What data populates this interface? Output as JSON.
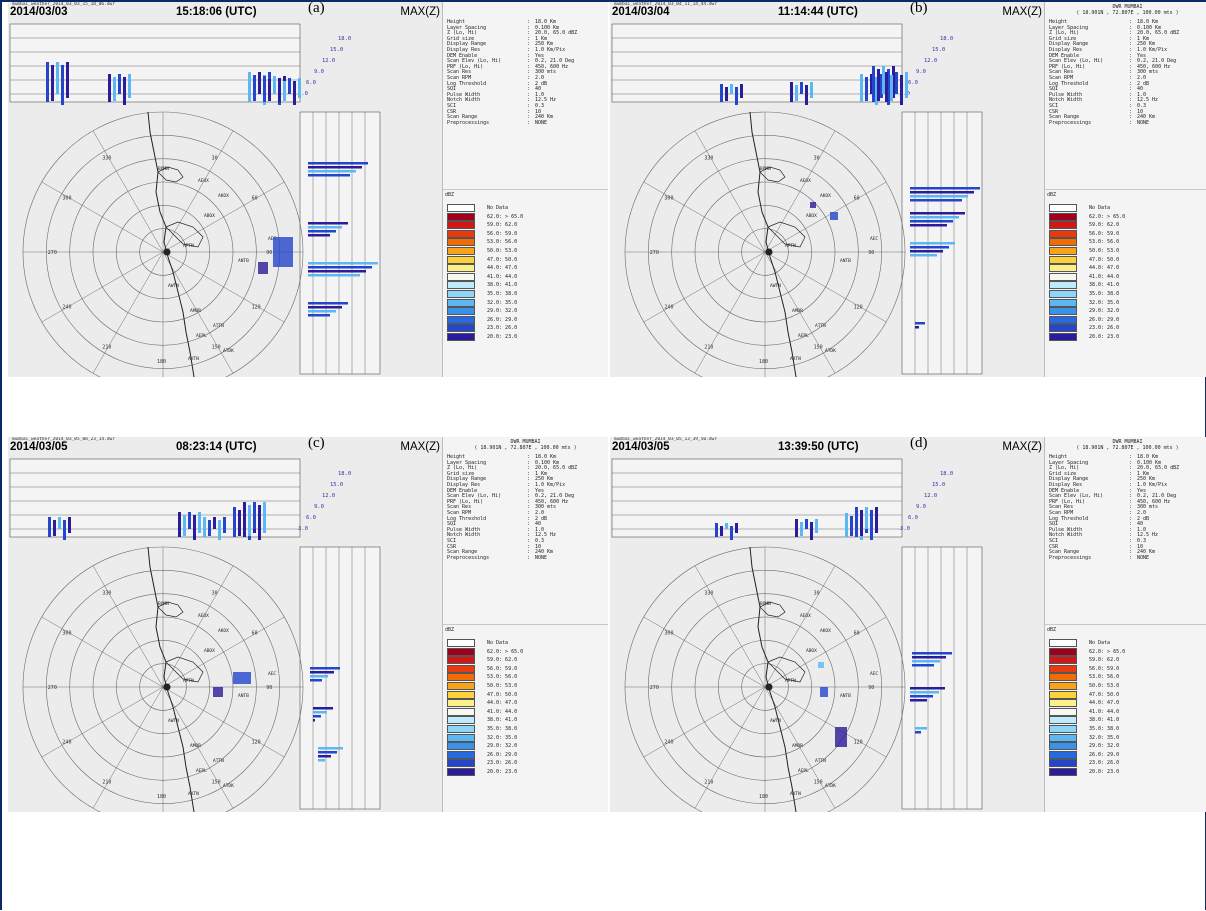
{
  "panels": [
    {
      "label": "(a)",
      "filename": "mumbai_weather_2014_03_03_15_18_06.dwr",
      "date": "2014/03/03",
      "time": "15:18:06 (UTC)",
      "product": "MAX(Z)",
      "show_header": false
    },
    {
      "label": "(b)",
      "filename": "mumbai_weather_2014_03_04_11_14_44.dwr",
      "date": "2014/03/04",
      "time": "11:14:44 (UTC)",
      "product": "MAX(Z)",
      "show_header": true
    },
    {
      "label": "(c)",
      "filename": "mumbai_weather_2014_03_05_08_23_14.dwr",
      "date": "2014/03/05",
      "time": "08:23:14 (UTC)",
      "product": "MAX(Z)",
      "show_header": true
    },
    {
      "label": "(d)",
      "filename": "mumbai_weather_2014_03_05_13_39_50.dwr",
      "date": "2014/03/05",
      "time": "13:39:50 (UTC)",
      "product": "MAX(Z)",
      "show_header": true
    }
  ],
  "radar_info": {
    "station": "DWR MUMBAI",
    "location": "( 18.901N , 72.807E , 100.00 mts )",
    "params": [
      [
        "Height",
        "18.0 Km"
      ],
      [
        "Layer Spacing",
        "0.100 Km"
      ],
      [
        "Z (Lo, Hi)",
        "20.0, 65.0 dBZ"
      ],
      [
        "Grid size",
        "1 Km"
      ],
      [
        "Display Range",
        "250 Km"
      ],
      [
        "Display Res",
        "1.0 Km/Pix"
      ],
      [
        "DEM Enable",
        "Yes"
      ],
      [
        "Scan Elev (Lo, Hi)",
        "0.2, 21.0 Deg"
      ],
      [
        "PRF (Lo, Hi)",
        "450, 600 Hz"
      ],
      [
        "Scan Res",
        "300 mts"
      ],
      [
        "Scan RPM",
        "2.0"
      ],
      [
        "Log Threshold",
        "2 dB"
      ],
      [
        "SQI",
        "40"
      ],
      [
        "Pulse Width",
        "1.0"
      ],
      [
        "Notch Width",
        "12.5 Hz"
      ],
      [
        "SCI",
        "0.3"
      ],
      [
        "CSR",
        "10"
      ],
      [
        "Scan Range",
        "240 Km"
      ],
      [
        "Preprocessings",
        "NONE"
      ]
    ]
  },
  "legend": {
    "unit": "dBZ",
    "items": [
      {
        "color": "#ffffff",
        "label": "No Data"
      },
      {
        "color": "#a0001c",
        "label": "62.0: > 65.0"
      },
      {
        "color": "#d01818",
        "label": "59.0: 62.0"
      },
      {
        "color": "#e83a10",
        "label": "56.0: 59.0"
      },
      {
        "color": "#f26c06",
        "label": "53.0: 56.0"
      },
      {
        "color": "#f7a41a",
        "label": "50.0: 53.0"
      },
      {
        "color": "#fbd23c",
        "label": "47.0: 50.0"
      },
      {
        "color": "#fcf08a",
        "label": "44.0: 47.0"
      },
      {
        "color": "#f8f8f0",
        "label": "41.0: 44.0"
      },
      {
        "color": "#bdeafc",
        "label": "38.0: 41.0"
      },
      {
        "color": "#8dd6f8",
        "label": "35.0: 38.0"
      },
      {
        "color": "#5cb8f2",
        "label": "32.0: 35.0"
      },
      {
        "color": "#3a92ea",
        "label": "29.0: 32.0"
      },
      {
        "color": "#256ae2",
        "label": "26.0: 29.0"
      },
      {
        "color": "#2446cc",
        "label": "23.0: 26.0"
      },
      {
        "color": "#2a1c9a",
        "label": "20.0: 23.0"
      }
    ]
  },
  "height_labels": [
    "18.0",
    "15.0",
    "12.0",
    "9.0",
    "6.0",
    "3.0"
  ],
  "range_labels": [
    "330",
    "30",
    "300",
    "60",
    "270",
    "90",
    "240",
    "120",
    "210",
    "150",
    "180"
  ],
  "station_labels": [
    "BOMN",
    "AEOX",
    "AKOX",
    "ABOX",
    "APTN",
    "AWTN",
    "AMOR",
    "ATTN",
    "AEPL",
    "ATDK",
    "AKTN",
    "AEC",
    "ANTB"
  ],
  "colors": {
    "frame": "#0c2a66",
    "plot_bg": "#ececec",
    "grid": "#6a6a6a",
    "echo_blue": "#2446cc",
    "echo_dark": "#2a1c9a",
    "echo_light": "#5cb8f2"
  }
}
